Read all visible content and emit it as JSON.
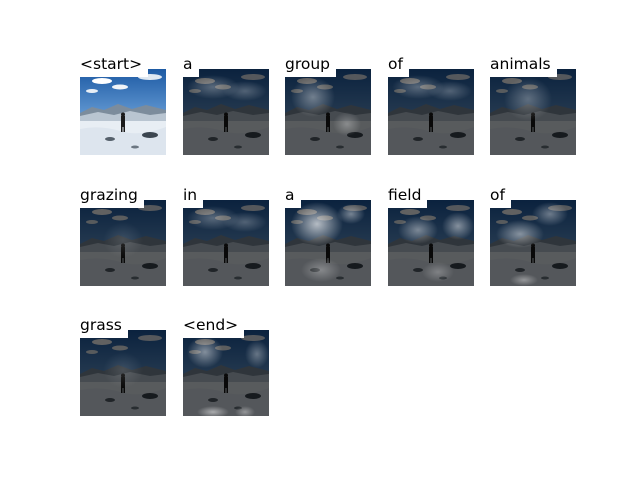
{
  "captions": [
    {
      "word": "<start>",
      "attention": "none"
    },
    {
      "word": "a",
      "attention": "top-band"
    },
    {
      "word": "group",
      "attention": "center-left"
    },
    {
      "word": "of",
      "attention": "top-band"
    },
    {
      "word": "animals",
      "attention": "center-soft"
    },
    {
      "word": "grazing",
      "attention": "faint"
    },
    {
      "word": "in",
      "attention": "top-band"
    },
    {
      "word": "a",
      "attention": "top-left-strong"
    },
    {
      "word": "field",
      "attention": "mid-right"
    },
    {
      "word": "of",
      "attention": "upper-center"
    },
    {
      "word": "grass",
      "attention": "faint"
    },
    {
      "word": "<end>",
      "attention": "top-bottom"
    }
  ],
  "colors": {
    "background": "#ffffff",
    "sky": "#2a6fb6",
    "snow": "#e8eef4",
    "dark_overlay": "#000000"
  }
}
